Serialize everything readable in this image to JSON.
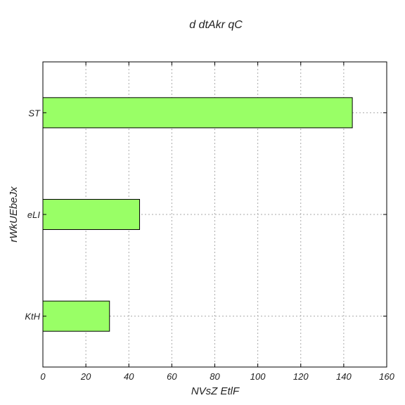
{
  "chart_data": {
    "type": "bar",
    "orientation": "horizontal",
    "title": "d dtAkr qC",
    "xlabel": "NVsZ EtlF",
    "ylabel": "rWkUEbeJx",
    "categories": [
      "ST",
      "eLI",
      "KtH"
    ],
    "values": [
      144,
      45,
      31
    ],
    "xlim": [
      0,
      160
    ],
    "xticks": [
      0,
      20,
      40,
      60,
      80,
      100,
      120,
      140,
      160
    ],
    "grid": true,
    "bar_color": "#99ff66"
  }
}
